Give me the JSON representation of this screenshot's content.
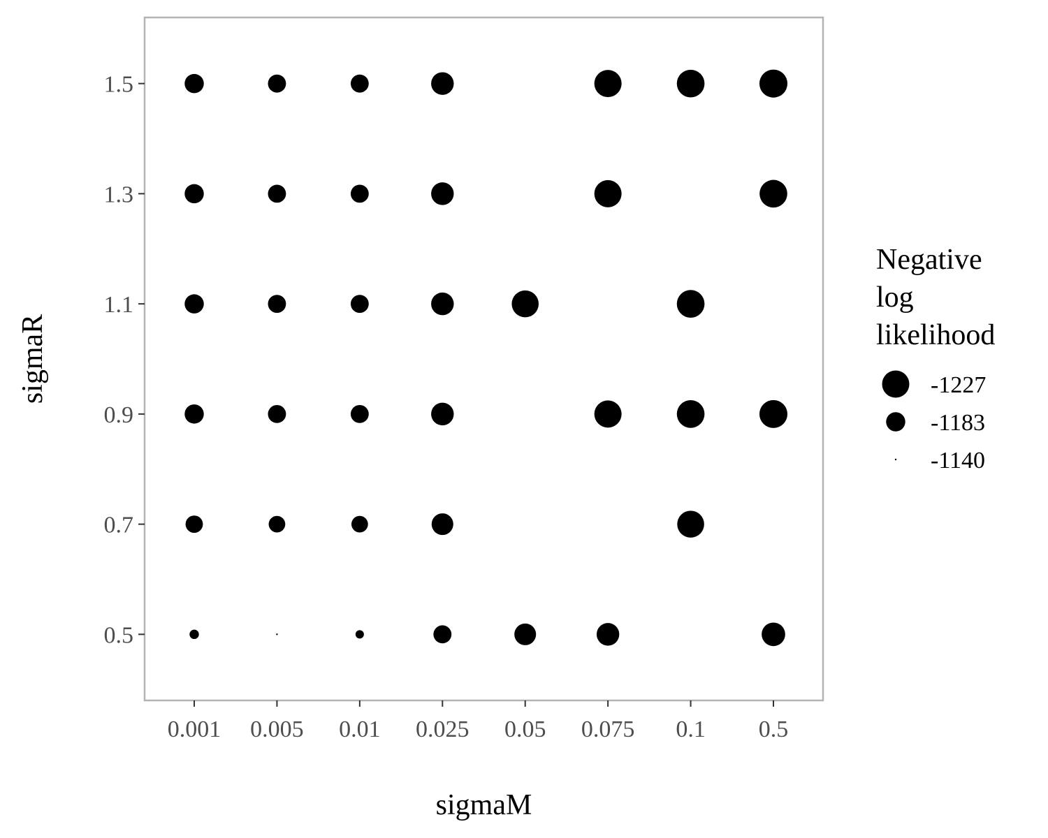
{
  "chart_data": {
    "type": "scatter",
    "xlabel": "sigmaM",
    "ylabel": "sigmaR",
    "x_categories": [
      "0.001",
      "0.005",
      "0.01",
      "0.025",
      "0.05",
      "0.075",
      "0.1",
      "0.5"
    ],
    "y_ticks": [
      "0.5",
      "0.7",
      "0.9",
      "1.1",
      "1.3",
      "1.5"
    ],
    "ylim": [
      0.38,
      1.62
    ],
    "grid": false,
    "size_variable": "Negative log likelihood",
    "legend": {
      "title_lines": [
        "Negative",
        "log",
        "likelihood"
      ],
      "placement": "right",
      "entries": [
        {
          "label": "-1227",
          "value": -1227
        },
        {
          "label": "-1183",
          "value": -1183
        },
        {
          "label": "-1140",
          "value": -1140
        }
      ]
    },
    "points": [
      {
        "x": "0.001",
        "y": 1.5,
        "nll": -1183
      },
      {
        "x": "0.005",
        "y": 1.5,
        "nll": -1178
      },
      {
        "x": "0.01",
        "y": 1.5,
        "nll": -1178
      },
      {
        "x": "0.025",
        "y": 1.5,
        "nll": -1200
      },
      {
        "x": "0.075",
        "y": 1.5,
        "nll": -1227
      },
      {
        "x": "0.1",
        "y": 1.5,
        "nll": -1230
      },
      {
        "x": "0.5",
        "y": 1.5,
        "nll": -1232
      },
      {
        "x": "0.001",
        "y": 1.3,
        "nll": -1183
      },
      {
        "x": "0.005",
        "y": 1.3,
        "nll": -1178
      },
      {
        "x": "0.01",
        "y": 1.3,
        "nll": -1178
      },
      {
        "x": "0.025",
        "y": 1.3,
        "nll": -1200
      },
      {
        "x": "0.075",
        "y": 1.3,
        "nll": -1227
      },
      {
        "x": "0.5",
        "y": 1.3,
        "nll": -1230
      },
      {
        "x": "0.001",
        "y": 1.1,
        "nll": -1183
      },
      {
        "x": "0.005",
        "y": 1.1,
        "nll": -1178
      },
      {
        "x": "0.01",
        "y": 1.1,
        "nll": -1178
      },
      {
        "x": "0.025",
        "y": 1.1,
        "nll": -1200
      },
      {
        "x": "0.05",
        "y": 1.1,
        "nll": -1225
      },
      {
        "x": "0.1",
        "y": 1.1,
        "nll": -1230
      },
      {
        "x": "0.001",
        "y": 0.9,
        "nll": -1183
      },
      {
        "x": "0.005",
        "y": 0.9,
        "nll": -1178
      },
      {
        "x": "0.01",
        "y": 0.9,
        "nll": -1178
      },
      {
        "x": "0.025",
        "y": 0.9,
        "nll": -1200
      },
      {
        "x": "0.075",
        "y": 0.9,
        "nll": -1227
      },
      {
        "x": "0.1",
        "y": 0.9,
        "nll": -1230
      },
      {
        "x": "0.5",
        "y": 0.9,
        "nll": -1232
      },
      {
        "x": "0.001",
        "y": 0.7,
        "nll": -1175
      },
      {
        "x": "0.005",
        "y": 0.7,
        "nll": -1172
      },
      {
        "x": "0.01",
        "y": 0.7,
        "nll": -1172
      },
      {
        "x": "0.025",
        "y": 0.7,
        "nll": -1195
      },
      {
        "x": "0.1",
        "y": 0.7,
        "nll": -1225
      },
      {
        "x": "0.001",
        "y": 0.5,
        "nll": -1150
      },
      {
        "x": "0.005",
        "y": 0.5,
        "nll": -1140
      },
      {
        "x": "0.01",
        "y": 0.5,
        "nll": -1148
      },
      {
        "x": "0.025",
        "y": 0.5,
        "nll": -1178
      },
      {
        "x": "0.05",
        "y": 0.5,
        "nll": -1195
      },
      {
        "x": "0.075",
        "y": 0.5,
        "nll": -1200
      },
      {
        "x": "0.5",
        "y": 0.5,
        "nll": -1205
      }
    ],
    "colors": {
      "points": "#000000",
      "panel_border": "#b3b3b3",
      "tick_label": "#4d4d4d",
      "tick_mark": "#333333",
      "background": "#ffffff"
    }
  }
}
